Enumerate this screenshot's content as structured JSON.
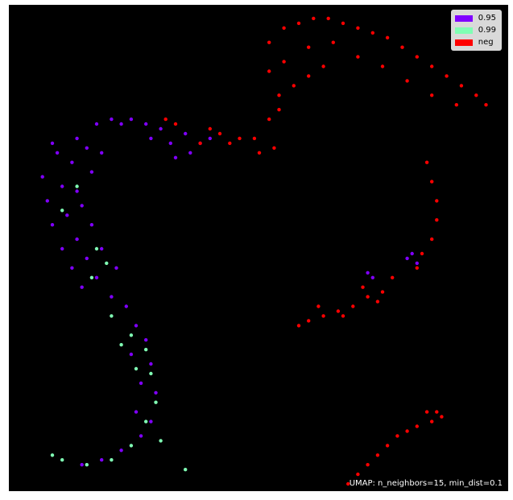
{
  "chart_data": {
    "type": "scatter",
    "title": "",
    "xlabel": "",
    "ylabel": "",
    "xlim": [
      0,
      100
    ],
    "ylim": [
      0,
      100
    ],
    "grid": false,
    "legend_placement": "top-right",
    "background": "#000000",
    "annotation": "UMAP: n_neighbors=15, min_dist=0.1",
    "legend": [
      {
        "label": "0.95",
        "color": "#8000ff"
      },
      {
        "label": "0.99",
        "color": "#80ffb4"
      },
      {
        "label": "neg",
        "color": "#ff0000"
      }
    ],
    "series": [
      {
        "label": "0.95",
        "color": "#8000ff",
        "points": [
          [
            17,
            76
          ],
          [
            20,
            77
          ],
          [
            24,
            77
          ],
          [
            27,
            76
          ],
          [
            30,
            75
          ],
          [
            8,
            72
          ],
          [
            13,
            73
          ],
          [
            22,
            76
          ],
          [
            28,
            73
          ],
          [
            32,
            72
          ],
          [
            6,
            65
          ],
          [
            9,
            70
          ],
          [
            12,
            68
          ],
          [
            15,
            71
          ],
          [
            7,
            60
          ],
          [
            10,
            63
          ],
          [
            13,
            62
          ],
          [
            16,
            66
          ],
          [
            18,
            70
          ],
          [
            8,
            55
          ],
          [
            11,
            57
          ],
          [
            14,
            59
          ],
          [
            10,
            50
          ],
          [
            13,
            52
          ],
          [
            16,
            55
          ],
          [
            12,
            46
          ],
          [
            15,
            48
          ],
          [
            18,
            50
          ],
          [
            14,
            42
          ],
          [
            17,
            44
          ],
          [
            21,
            46
          ],
          [
            20,
            40
          ],
          [
            23,
            38
          ],
          [
            25,
            34
          ],
          [
            27,
            31
          ],
          [
            24,
            28
          ],
          [
            28,
            26
          ],
          [
            26,
            22
          ],
          [
            29,
            20
          ],
          [
            25,
            16
          ],
          [
            28,
            14
          ],
          [
            26,
            11
          ],
          [
            22,
            8
          ],
          [
            18,
            6
          ],
          [
            14,
            5
          ],
          [
            33,
            69
          ],
          [
            36,
            70
          ],
          [
            38,
            72
          ],
          [
            40,
            73
          ],
          [
            35,
            74
          ],
          [
            80,
            48
          ],
          [
            82,
            47
          ],
          [
            81,
            49
          ],
          [
            72,
            45
          ],
          [
            73,
            44
          ]
        ]
      },
      {
        "label": "0.99",
        "color": "#80ffb4",
        "points": [
          [
            16,
            44
          ],
          [
            19,
            47
          ],
          [
            17,
            50
          ],
          [
            20,
            36
          ],
          [
            24,
            32
          ],
          [
            27,
            29
          ],
          [
            25,
            25
          ],
          [
            28,
            24
          ],
          [
            29,
            18
          ],
          [
            27,
            14
          ],
          [
            24,
            9
          ],
          [
            20,
            6
          ],
          [
            15,
            5
          ],
          [
            10,
            6
          ],
          [
            8,
            7
          ],
          [
            13,
            63
          ],
          [
            10,
            58
          ],
          [
            35,
            4
          ],
          [
            30,
            10
          ],
          [
            22,
            30
          ]
        ]
      },
      {
        "label": "neg",
        "color": "#ff0000",
        "points": [
          [
            52,
            93
          ],
          [
            55,
            96
          ],
          [
            58,
            97
          ],
          [
            61,
            98
          ],
          [
            64,
            98
          ],
          [
            67,
            97
          ],
          [
            70,
            96
          ],
          [
            73,
            95
          ],
          [
            76,
            94
          ],
          [
            79,
            92
          ],
          [
            82,
            90
          ],
          [
            85,
            88
          ],
          [
            88,
            86
          ],
          [
            91,
            84
          ],
          [
            94,
            82
          ],
          [
            96,
            80
          ],
          [
            52,
            87
          ],
          [
            55,
            89
          ],
          [
            60,
            92
          ],
          [
            65,
            93
          ],
          [
            70,
            90
          ],
          [
            75,
            88
          ],
          [
            80,
            85
          ],
          [
            85,
            82
          ],
          [
            90,
            80
          ],
          [
            54,
            82
          ],
          [
            57,
            84
          ],
          [
            60,
            86
          ],
          [
            63,
            88
          ],
          [
            52,
            77
          ],
          [
            54,
            79
          ],
          [
            49,
            73
          ],
          [
            50,
            70
          ],
          [
            53,
            71
          ],
          [
            46,
            73
          ],
          [
            42,
            74
          ],
          [
            44,
            72
          ],
          [
            38,
            72
          ],
          [
            40,
            75
          ],
          [
            31,
            77
          ],
          [
            33,
            76
          ],
          [
            84,
            68
          ],
          [
            85,
            64
          ],
          [
            86,
            60
          ],
          [
            86,
            56
          ],
          [
            85,
            52
          ],
          [
            83,
            49
          ],
          [
            82,
            46
          ],
          [
            77,
            44
          ],
          [
            75,
            41
          ],
          [
            72,
            40
          ],
          [
            69,
            38
          ],
          [
            66,
            37
          ],
          [
            63,
            36
          ],
          [
            60,
            35
          ],
          [
            58,
            34
          ],
          [
            67,
            36
          ],
          [
            62,
            38
          ],
          [
            71,
            42
          ],
          [
            74,
            39
          ],
          [
            87,
            15
          ],
          [
            85,
            14
          ],
          [
            82,
            13
          ],
          [
            80,
            12
          ],
          [
            78,
            11
          ],
          [
            76,
            9
          ],
          [
            74,
            7
          ],
          [
            72,
            5
          ],
          [
            70,
            3
          ],
          [
            68,
            1
          ],
          [
            84,
            16
          ],
          [
            86,
            16
          ]
        ]
      }
    ]
  }
}
